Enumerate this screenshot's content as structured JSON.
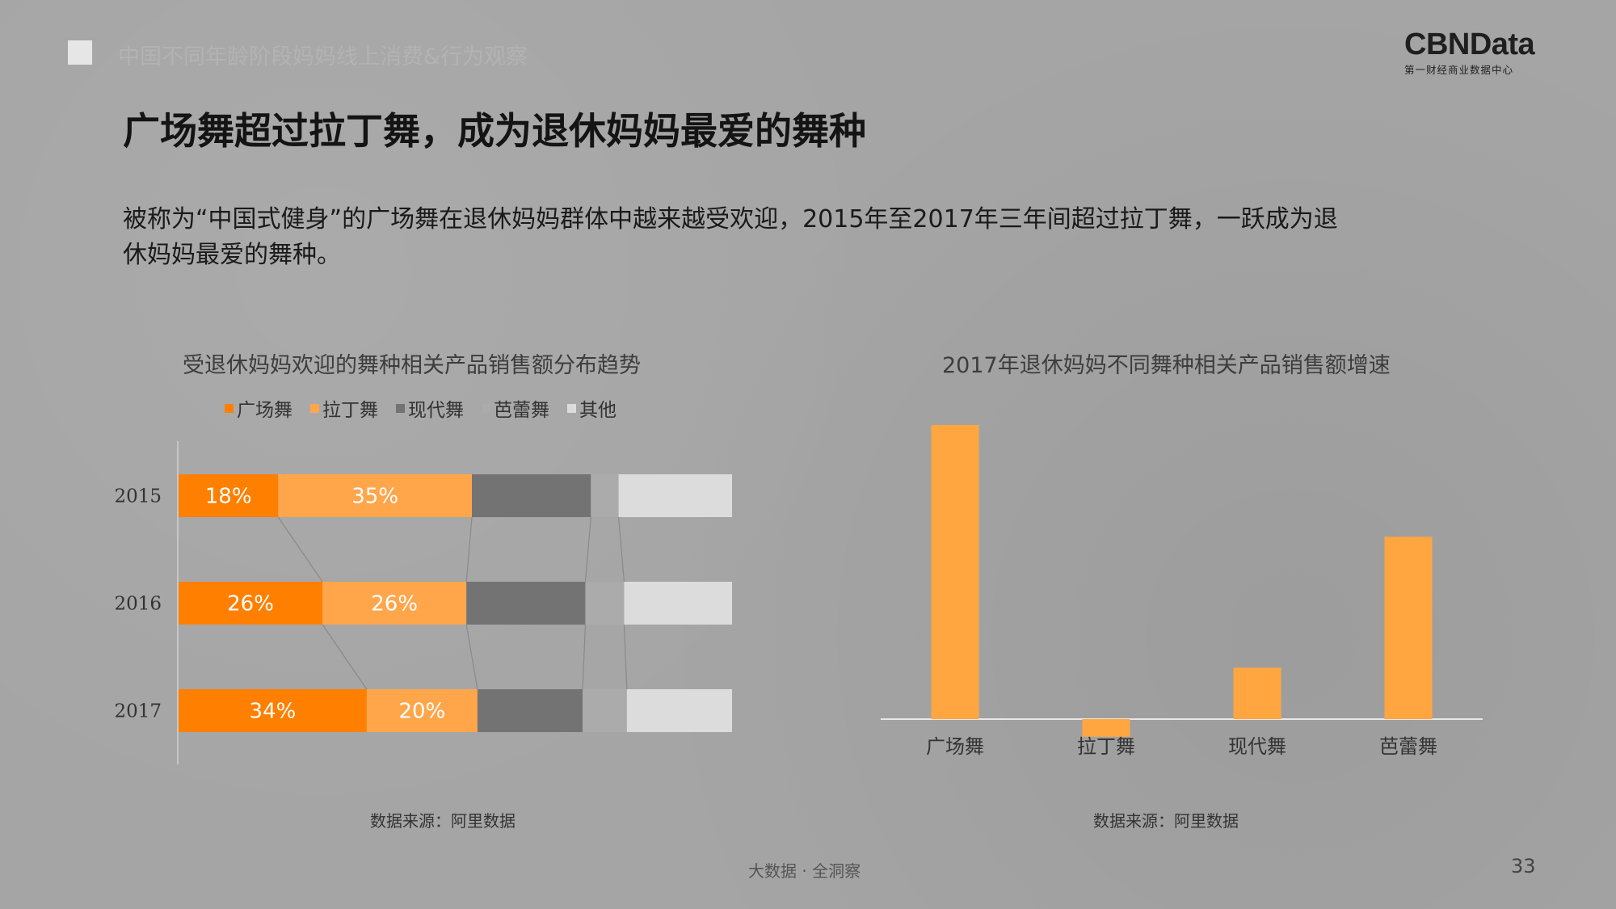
{
  "header": {
    "section_label": "中国不同年龄阶段妈妈线上消费&行为观察",
    "logo_main": "CBNData",
    "logo_sub": "第一财经商业数据中心"
  },
  "title": "广场舞超过拉丁舞，成为退休妈妈最爱的舞种",
  "intro_line1": "被称为“中国式健身”的广场舞在退休妈妈群体中越来越受欢迎，2015年至2017年三年间超过拉丁舞，一跃成为退",
  "intro_line2": "休妈妈最爱的舞种。",
  "footer": {
    "center": "大数据 · 全洞察",
    "page": "33"
  },
  "colors": {
    "series": [
      "#ff7f00",
      "#ffa64b",
      "#737373",
      "#ababab",
      "#dcdcdc"
    ],
    "growth_bar": "#ffa640"
  },
  "chart_data": [
    {
      "type": "bar",
      "orientation": "horizontal",
      "stacked": true,
      "percent_stacked": true,
      "title": "受退休妈妈欢迎的舞种相关产品销售额分布趋势",
      "legend_position": "top",
      "categories": [
        "2015",
        "2016",
        "2017"
      ],
      "series": [
        {
          "name": "广场舞",
          "values": [
            18,
            26,
            34
          ],
          "labels": [
            "18%",
            "26%",
            "34%"
          ]
        },
        {
          "name": "拉丁舞",
          "values": [
            35,
            26,
            20
          ],
          "labels": [
            "35%",
            "26%",
            "20%"
          ]
        },
        {
          "name": "现代舞",
          "values": [
            21.5,
            21.5,
            19
          ]
        },
        {
          "name": "芭蕾舞",
          "values": [
            5,
            7,
            8
          ]
        },
        {
          "name": "其他",
          "values": [
            20.5,
            19.5,
            19
          ]
        }
      ],
      "source": "数据来源：阿里数据"
    },
    {
      "type": "bar",
      "title": "2017年退休妈妈不同舞种相关产品销售额增速",
      "categories": [
        "广场舞",
        "拉丁舞",
        "现代舞",
        "芭蕾舞"
      ],
      "values": [
        100,
        -6,
        17.5,
        62
      ],
      "ylim": [
        -10,
        100
      ],
      "grid": false,
      "source": "数据来源：阿里数据"
    }
  ]
}
